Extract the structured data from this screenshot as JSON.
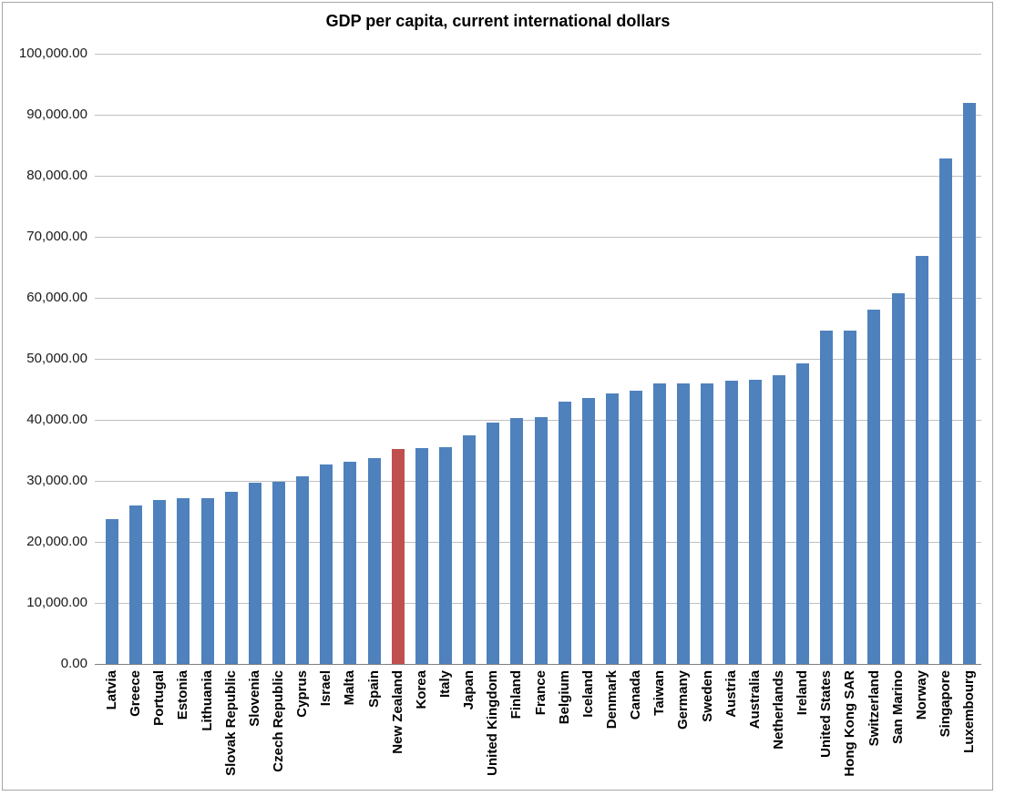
{
  "window": {
    "background_color": "#ffffff",
    "frame_border_color": "#a6a6a6"
  },
  "chart_data": {
    "type": "bar",
    "title": "GDP per capita, current international dollars",
    "xlabel": "",
    "ylabel": "",
    "categories": [
      "Latvia",
      "Greece",
      "Portugal",
      "Estonia",
      "Lithuania",
      "Slovak Republic",
      "Slovenia",
      "Czech Republic",
      "Cyprus",
      "Israel",
      "Malta",
      "Spain",
      "New Zealand",
      "Korea",
      "Italy",
      "Japan",
      "United Kingdom",
      "Finland",
      "France",
      "Belgium",
      "Iceland",
      "Denmark",
      "Canada",
      "Taiwan",
      "Germany",
      "Sweden",
      "Austria",
      "Australia",
      "Netherlands",
      "Ireland",
      "United States",
      "Hong Kong SAR",
      "Switzerland",
      "San Marino",
      "Norway",
      "Singapore",
      "Luxembourg"
    ],
    "values": [
      23800,
      25900,
      26900,
      27100,
      27100,
      28200,
      29700,
      29900,
      30800,
      32700,
      33200,
      33700,
      35200,
      35300,
      35500,
      37400,
      39500,
      40300,
      40400,
      43000,
      43600,
      44300,
      44800,
      45900,
      45900,
      46000,
      46400,
      46500,
      47300,
      49200,
      54600,
      54700,
      58100,
      60700,
      66900,
      82800,
      92000
    ],
    "bar_color": "#4f81bd",
    "highlight": {
      "category": "New Zealand",
      "index": 12,
      "color": "#c0504d"
    },
    "ylim": [
      0,
      100000
    ],
    "ytick_step": 10000,
    "ytick_labels": [
      "0.00",
      "10,000.00",
      "20,000.00",
      "30,000.00",
      "40,000.00",
      "50,000.00",
      "60,000.00",
      "70,000.00",
      "80,000.00",
      "90,000.00",
      "100,000.00"
    ],
    "grid": true,
    "gridline_color": "#c0c0c0",
    "axis_line_color": "#808080",
    "legend_position": "none",
    "x_label_rotation_degrees": 90
  }
}
